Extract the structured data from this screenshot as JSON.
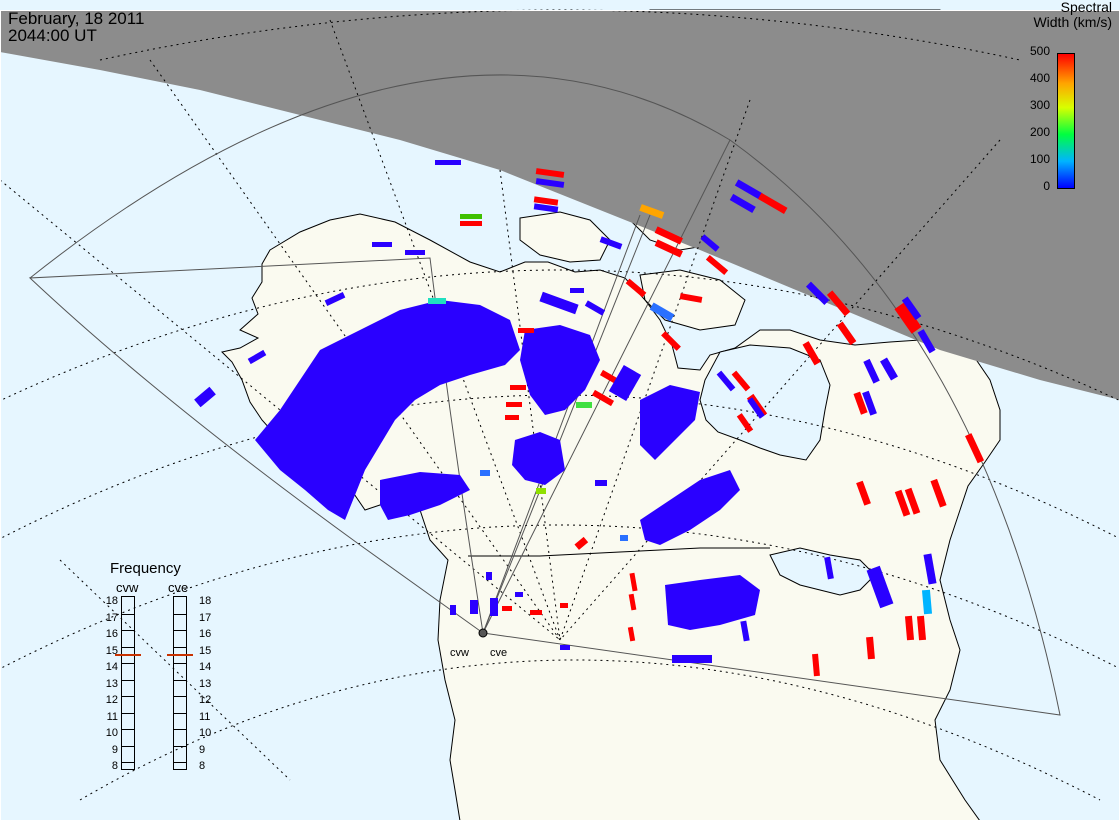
{
  "header": {
    "date": "February, 18 2011",
    "time": "2044:00 UT"
  },
  "colorscale": {
    "title_line1": "Spectral",
    "title_line2": "Width (km/s)",
    "ticks": [
      "500",
      "400",
      "300",
      "200",
      "100",
      "0"
    ]
  },
  "frequency": {
    "title": "Frequency",
    "radars": [
      {
        "name": "cvw",
        "value_mhz": 15
      },
      {
        "name": "cve",
        "value_mhz": 15
      }
    ],
    "scale": [
      "18",
      "17",
      "16",
      "15",
      "14",
      "13",
      "12",
      "11",
      "10",
      "9",
      "8"
    ]
  },
  "radar_labels": {
    "west": "cvw",
    "east": "cve"
  },
  "colors": {
    "ocean": "#e6f6ff",
    "land": "#fafaf0",
    "night": "#8c8c8c",
    "scatter_low": "#2a00ff",
    "scatter_high": "#ff0000",
    "frequency_marker": "#c83200"
  }
}
